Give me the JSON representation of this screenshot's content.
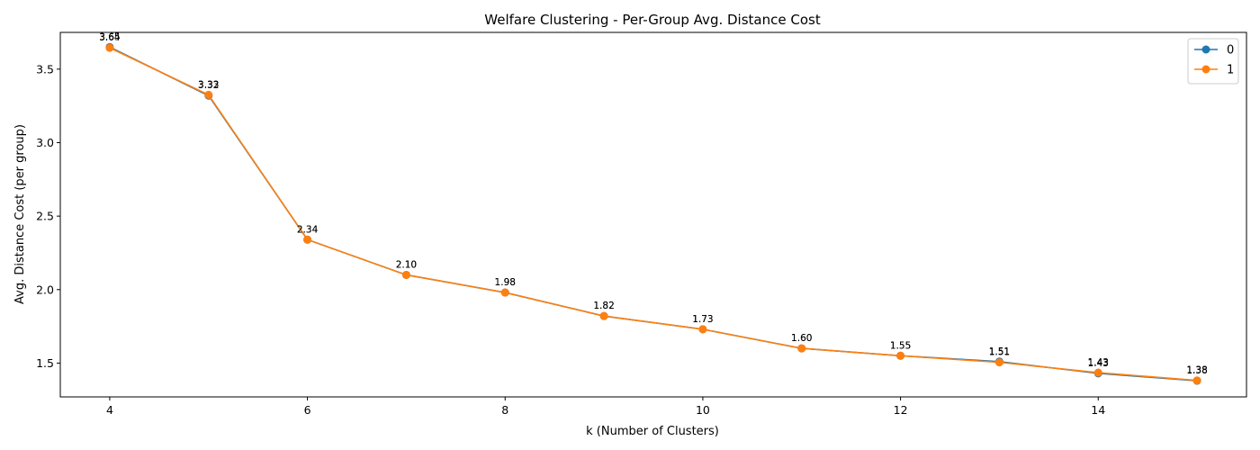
{
  "chart_data": {
    "type": "line",
    "title": "Welfare Clustering - Per-Group Avg. Distance Cost",
    "xlabel": "k (Number of Clusters)",
    "ylabel": "Avg. Distance Cost (per group)",
    "x": [
      4,
      5,
      6,
      7,
      8,
      9,
      10,
      11,
      12,
      13,
      14,
      15
    ],
    "xlim": [
      3.5,
      15.5
    ],
    "ylim": [
      1.27,
      3.75
    ],
    "xticks": [
      4,
      6,
      8,
      10,
      12,
      14
    ],
    "yticks": [
      1.5,
      2.0,
      2.5,
      3.0,
      3.5
    ],
    "grid": false,
    "legend_position": "top-right",
    "series": [
      {
        "name": "0",
        "color": "#1f77b4",
        "values": [
          3.65,
          3.32,
          2.34,
          2.1,
          1.98,
          1.82,
          1.73,
          1.6,
          1.55,
          1.51,
          1.43,
          1.38
        ],
        "labels": [
          "3.65",
          "3.32",
          "2.34",
          "2.10",
          "1.98",
          "1.82",
          "1.73",
          "1.60",
          "1.55",
          "1.51",
          "1.43",
          "1.38"
        ]
      },
      {
        "name": "1",
        "color": "#ff7f0e",
        "values": [
          3.645,
          3.325,
          2.34,
          2.1,
          1.98,
          1.82,
          1.73,
          1.6,
          1.55,
          1.505,
          1.435,
          1.382
        ],
        "labels": [
          "3.64",
          "3.33",
          "2.34",
          "2.10",
          "1.98",
          "1.82",
          "1.73",
          "1.60",
          "1.55",
          "1.51",
          "1.43",
          "1.38"
        ]
      }
    ]
  }
}
